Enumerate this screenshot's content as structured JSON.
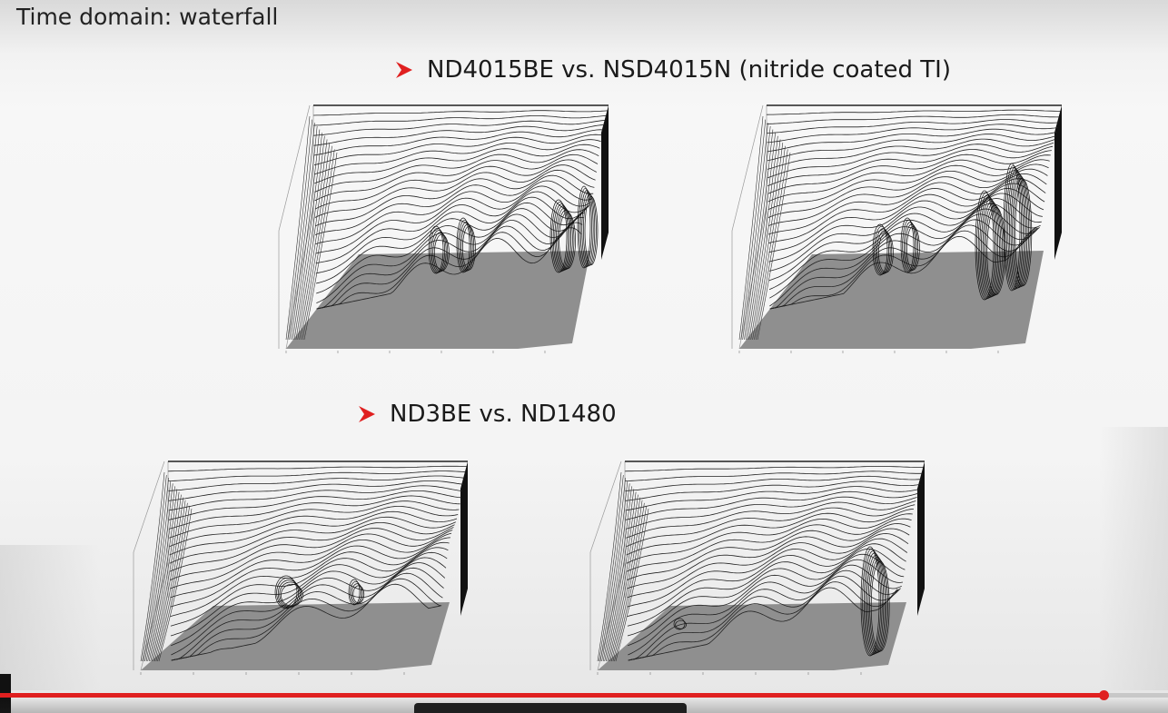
{
  "slide": {
    "title": "Time domain: waterfall",
    "bullets": [
      {
        "text": "ND4015BE vs. NSD4015N (nitride coated TI)"
      },
      {
        "text": "ND3BE vs. ND1480"
      }
    ],
    "bullet_color": "#e02020"
  },
  "player": {
    "progress_fraction": 0.945,
    "progress_color": "#e02020"
  }
}
